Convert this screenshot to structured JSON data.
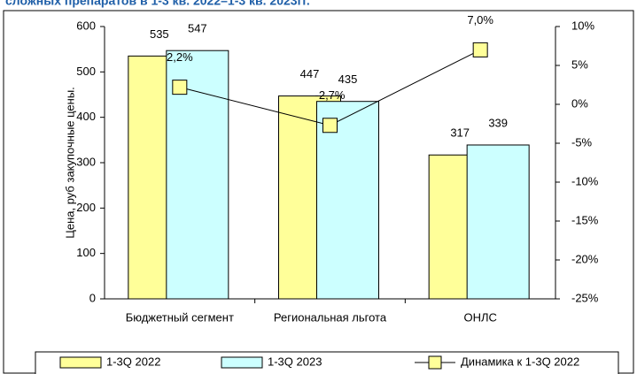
{
  "chart_data": {
    "type": "bar",
    "title": "сложных препаратов в 1-3 кв. 2022–1-3 кв. 2023гг.",
    "y_label": "Цена, руб закупочные цены.",
    "categories": [
      "Бюджетный сегмент",
      "Региональная льгота",
      "ОНЛС"
    ],
    "series": [
      {
        "name": "1-3Q 2022",
        "color": "#ffff99",
        "values": [
          535,
          447,
          317
        ]
      },
      {
        "name": "1-3Q 2023",
        "color": "#ccffff",
        "values": [
          547,
          435,
          339
        ]
      },
      {
        "name": "Динамика к 1-3Q 2022",
        "color": "#ffff99",
        "type": "line",
        "axis": "y2",
        "values": [
          2.2,
          -2.7,
          7.0
        ],
        "value_labels": [
          "2,2%",
          "-2,7%",
          "7,0%"
        ]
      }
    ],
    "ylim": [
      0,
      600
    ],
    "yticks": [
      0,
      100,
      200,
      300,
      400,
      500,
      600
    ],
    "y2lim": [
      -25,
      10
    ],
    "y2ticks": [
      {
        "value": -25,
        "label": "-25%"
      },
      {
        "value": -20,
        "label": "-20%"
      },
      {
        "value": -15,
        "label": "-15%"
      },
      {
        "value": -10,
        "label": "-10%"
      },
      {
        "value": -5,
        "label": "-5%"
      },
      {
        "value": 0,
        "label": "0%"
      },
      {
        "value": 5,
        "label": "5%"
      },
      {
        "value": 10,
        "label": "10%"
      }
    ],
    "legend": "bottom"
  }
}
